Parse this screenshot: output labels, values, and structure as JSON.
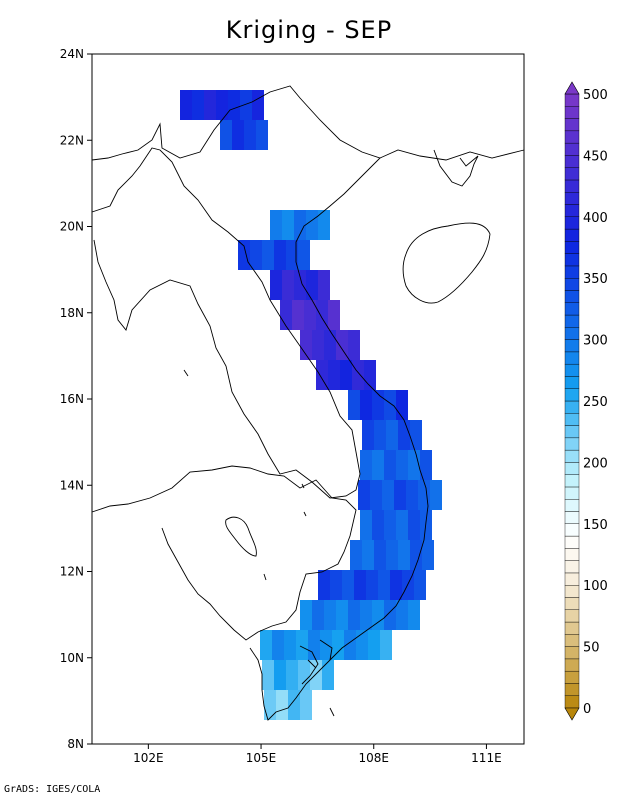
{
  "title": "Kriging - SEP",
  "credit": "GrADS: IGES/COLA",
  "colors": {
    "colorbar_min": "#b8860b",
    "colorbar_low": "#f6ecd8",
    "colorbar_mid": "#bdf0fb",
    "colorbar_blue": "#0e23e0",
    "colorbar_max": "#7a38c8",
    "land_outline": "#000000"
  },
  "map": {
    "lon_range": [
      100.5,
      112.0
    ],
    "lat_range": [
      8,
      24
    ],
    "x_ticks": [
      {
        "value": 102,
        "label": "102E"
      },
      {
        "value": 105,
        "label": "105E"
      },
      {
        "value": 108,
        "label": "108E"
      },
      {
        "value": 111,
        "label": "111E"
      }
    ],
    "y_ticks": [
      {
        "value": 8,
        "label": "8N"
      },
      {
        "value": 10,
        "label": "10N"
      },
      {
        "value": 12,
        "label": "12N"
      },
      {
        "value": 14,
        "label": "14N"
      },
      {
        "value": 16,
        "label": "16N"
      },
      {
        "value": 18,
        "label": "18N"
      },
      {
        "value": 20,
        "label": "20N"
      },
      {
        "value": 22,
        "label": "22N"
      },
      {
        "value": 24,
        "label": "24N"
      }
    ]
  },
  "colorbar": {
    "min": 0,
    "max": 500,
    "labels": [
      {
        "value": 0,
        "label": "0"
      },
      {
        "value": 50,
        "label": "50"
      },
      {
        "value": 100,
        "label": "100"
      },
      {
        "value": 150,
        "label": "150"
      },
      {
        "value": 200,
        "label": "200"
      },
      {
        "value": 250,
        "label": "250"
      },
      {
        "value": 300,
        "label": "300"
      },
      {
        "value": 350,
        "label": "350"
      },
      {
        "value": 400,
        "label": "400"
      },
      {
        "value": 450,
        "label": "450"
      },
      {
        "value": 500,
        "label": "500"
      }
    ]
  }
}
